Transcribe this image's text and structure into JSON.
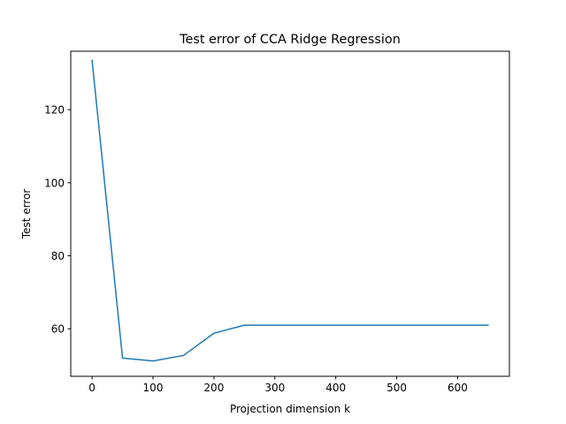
{
  "chart_data": {
    "type": "line",
    "title": "Test error of CCA Ridge Regression",
    "xlabel": "Projection dimension k",
    "ylabel": "Test error",
    "xlim": [
      -35,
      685
    ],
    "ylim": [
      47,
      136
    ],
    "xticks": [
      0,
      100,
      200,
      300,
      400,
      500,
      600
    ],
    "yticks": [
      60,
      80,
      100,
      120
    ],
    "grid": false,
    "legend": "none",
    "series": [
      {
        "color": "#1f77b4",
        "x": [
          0,
          50,
          100,
          150,
          200,
          250,
          300,
          350,
          400,
          450,
          500,
          550,
          600,
          650
        ],
        "y": [
          133.5,
          52.0,
          51.2,
          52.7,
          58.8,
          61.0,
          61.0,
          61.0,
          61.0,
          61.0,
          61.0,
          61.0,
          61.0,
          61.0
        ]
      }
    ]
  }
}
